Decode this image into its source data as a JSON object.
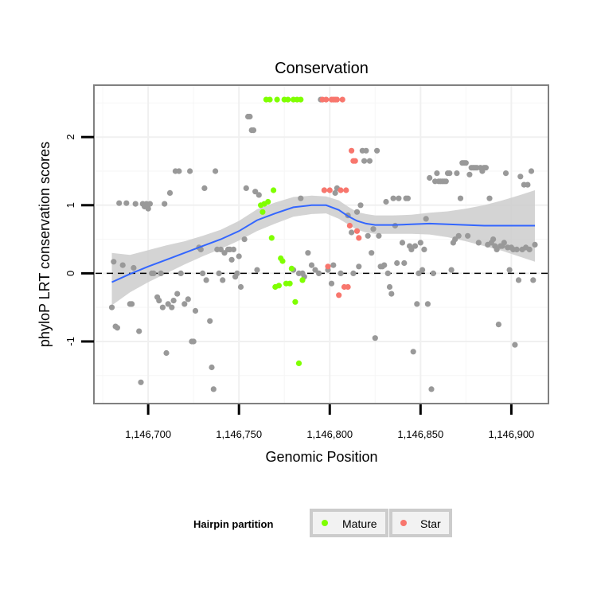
{
  "chart_data": {
    "type": "scatter",
    "title": "Conservation",
    "xlabel": "Genomic Position",
    "ylabel": "phyloP LRT conservation scores",
    "xlim": [
      1146671,
      1146920
    ],
    "ylim": [
      -1.9,
      2.75
    ],
    "x_ticks": [
      1146700,
      1146750,
      1146800,
      1146850,
      1146900
    ],
    "x_tick_labels": [
      "1,146,700",
      "1,146,750",
      "1,146,800",
      "1,146,850",
      "1,146,900"
    ],
    "y_ticks": [
      -1,
      0,
      1,
      2
    ],
    "y_tick_labels": [
      "-1",
      "0",
      "1",
      "2"
    ],
    "reference_line": {
      "y": 0,
      "style": "dashed"
    },
    "grid": true,
    "legend": {
      "title": "Hairpin partition",
      "placement": "bottom",
      "entries": [
        {
          "label": "Mature",
          "color": "#7FFF00"
        },
        {
          "label": "Star",
          "color": "#F8766D"
        }
      ]
    },
    "colors": {
      "other": "#999999",
      "mature": "#7FFF00",
      "star": "#F8766D",
      "smooth": "#3366FF",
      "band": "#cccccc"
    },
    "points": [
      [
        1146680,
        -0.5
      ],
      [
        1146681,
        0.17
      ],
      [
        1146682,
        -0.78
      ],
      [
        1146683,
        -0.8
      ],
      [
        1146684,
        1.03
      ],
      [
        1146686,
        0.12
      ],
      [
        1146688,
        1.03
      ],
      [
        1146690,
        -0.45
      ],
      [
        1146691,
        -0.45
      ],
      [
        1146692,
        0.08
      ],
      [
        1146693,
        1.02
      ],
      [
        1146695,
        -0.85
      ],
      [
        1146696,
        -1.6
      ],
      [
        1146697,
        1.02
      ],
      [
        1146698,
        0.98
      ],
      [
        1146699,
        1.02
      ],
      [
        1146700,
        0.95
      ],
      [
        1146701,
        1.02
      ],
      [
        1146702,
        0.0
      ],
      [
        1146703,
        0.0
      ],
      [
        1146705,
        -0.35
      ],
      [
        1146706,
        -0.4
      ],
      [
        1146707,
        0.0
      ],
      [
        1146708,
        -0.5
      ],
      [
        1146709,
        1.02
      ],
      [
        1146710,
        -1.17
      ],
      [
        1146711,
        -0.45
      ],
      [
        1146712,
        1.18
      ],
      [
        1146713,
        -0.5
      ],
      [
        1146714,
        -0.4
      ],
      [
        1146715,
        1.5
      ],
      [
        1146716,
        -0.3
      ],
      [
        1146717,
        1.5
      ],
      [
        1146718,
        0.0
      ],
      [
        1146720,
        -0.45
      ],
      [
        1146722,
        -0.38
      ],
      [
        1146723,
        1.5
      ],
      [
        1146724,
        -1.0
      ],
      [
        1146725,
        -1.0
      ],
      [
        1146726,
        -0.55
      ],
      [
        1146728,
        0.38
      ],
      [
        1146729,
        0.35
      ],
      [
        1146730,
        0.0
      ],
      [
        1146731,
        1.25
      ],
      [
        1146732,
        -0.1
      ],
      [
        1146734,
        -0.7
      ],
      [
        1146735,
        -1.38
      ],
      [
        1146736,
        -1.7
      ],
      [
        1146737,
        1.5
      ],
      [
        1146738,
        0.35
      ],
      [
        1146739,
        0.0
      ],
      [
        1146740,
        0.35
      ],
      [
        1146741,
        -0.1
      ],
      [
        1146742,
        0.3
      ],
      [
        1146744,
        0.35
      ],
      [
        1146745,
        0.35
      ],
      [
        1146746,
        0.2
      ],
      [
        1146747,
        0.35
      ],
      [
        1146748,
        -0.05
      ],
      [
        1146749,
        0.0
      ],
      [
        1146750,
        0.25
      ],
      [
        1146751,
        -0.2
      ],
      [
        1146753,
        0.5
      ],
      [
        1146754,
        1.25
      ],
      [
        1146755,
        2.3
      ],
      [
        1146756,
        2.3
      ],
      [
        1146757,
        2.1
      ],
      [
        1146758,
        2.1
      ],
      [
        1146759,
        1.2
      ],
      [
        1146760,
        0.05
      ],
      [
        1146761,
        1.15
      ],
      [
        1146780,
        0.05
      ],
      [
        1146783,
        0.0
      ],
      [
        1146784,
        1.1
      ],
      [
        1146785,
        0.0
      ],
      [
        1146786,
        -0.05
      ],
      [
        1146788,
        0.3
      ],
      [
        1146790,
        0.12
      ],
      [
        1146792,
        0.05
      ],
      [
        1146794,
        0.0
      ],
      [
        1146795,
        2.55
      ],
      [
        1146797,
        1.22
      ],
      [
        1146799,
        0.05
      ],
      [
        1146801,
        -0.15
      ],
      [
        1146802,
        0.12
      ],
      [
        1146803,
        1.18
      ],
      [
        1146804,
        1.25
      ],
      [
        1146806,
        0.0
      ],
      [
        1146810,
        0.85
      ],
      [
        1146812,
        0.6
      ],
      [
        1146813,
        0.0
      ],
      [
        1146815,
        0.9
      ],
      [
        1146816,
        0.1
      ],
      [
        1146817,
        1.0
      ],
      [
        1146818,
        1.8
      ],
      [
        1146819,
        1.65
      ],
      [
        1146820,
        1.8
      ],
      [
        1146821,
        0.55
      ],
      [
        1146822,
        1.65
      ],
      [
        1146823,
        0.3
      ],
      [
        1146824,
        0.65
      ],
      [
        1146825,
        -0.95
      ],
      [
        1146826,
        1.8
      ],
      [
        1146827,
        0.55
      ],
      [
        1146828,
        0.1
      ],
      [
        1146829,
        0.1
      ],
      [
        1146830,
        0.12
      ],
      [
        1146831,
        1.05
      ],
      [
        1146832,
        0.0
      ],
      [
        1146833,
        -0.2
      ],
      [
        1146834,
        -0.3
      ],
      [
        1146835,
        1.1
      ],
      [
        1146836,
        0.7
      ],
      [
        1146837,
        0.15
      ],
      [
        1146838,
        1.1
      ],
      [
        1146840,
        0.45
      ],
      [
        1146841,
        0.15
      ],
      [
        1146842,
        1.1
      ],
      [
        1146843,
        1.1
      ],
      [
        1146844,
        0.4
      ],
      [
        1146845,
        0.35
      ],
      [
        1146846,
        -1.15
      ],
      [
        1146847,
        0.4
      ],
      [
        1146848,
        -0.45
      ],
      [
        1146849,
        0.0
      ],
      [
        1146850,
        0.45
      ],
      [
        1146851,
        0.05
      ],
      [
        1146852,
        0.35
      ],
      [
        1146853,
        0.8
      ],
      [
        1146854,
        -0.45
      ],
      [
        1146855,
        1.4
      ],
      [
        1146856,
        -1.7
      ],
      [
        1146857,
        0.0
      ],
      [
        1146858,
        1.35
      ],
      [
        1146859,
        1.47
      ],
      [
        1146860,
        1.35
      ],
      [
        1146861,
        1.35
      ],
      [
        1146862,
        1.35
      ],
      [
        1146863,
        1.35
      ],
      [
        1146864,
        1.35
      ],
      [
        1146865,
        1.47
      ],
      [
        1146866,
        1.47
      ],
      [
        1146867,
        0.05
      ],
      [
        1146868,
        0.45
      ],
      [
        1146869,
        0.5
      ],
      [
        1146870,
        1.47
      ],
      [
        1146871,
        0.55
      ],
      [
        1146872,
        1.1
      ],
      [
        1146873,
        1.62
      ],
      [
        1146874,
        1.62
      ],
      [
        1146875,
        1.62
      ],
      [
        1146876,
        0.55
      ],
      [
        1146877,
        1.45
      ],
      [
        1146878,
        1.55
      ],
      [
        1146879,
        1.55
      ],
      [
        1146880,
        1.55
      ],
      [
        1146881,
        1.55
      ],
      [
        1146882,
        0.45
      ],
      [
        1146883,
        1.55
      ],
      [
        1146884,
        1.5
      ],
      [
        1146885,
        1.55
      ],
      [
        1146886,
        1.55
      ],
      [
        1146887,
        0.42
      ],
      [
        1146888,
        1.1
      ],
      [
        1146889,
        0.45
      ],
      [
        1146890,
        0.5
      ],
      [
        1146891,
        0.4
      ],
      [
        1146892,
        0.35
      ],
      [
        1146893,
        -0.75
      ],
      [
        1146894,
        0.4
      ],
      [
        1146895,
        0.4
      ],
      [
        1146896,
        0.45
      ],
      [
        1146897,
        1.47
      ],
      [
        1146898,
        0.38
      ],
      [
        1146899,
        0.05
      ],
      [
        1146900,
        0.38
      ],
      [
        1146901,
        0.35
      ],
      [
        1146902,
        -1.05
      ],
      [
        1146903,
        0.35
      ],
      [
        1146904,
        -0.1
      ],
      [
        1146905,
        1.42
      ],
      [
        1146906,
        0.35
      ],
      [
        1146907,
        1.3
      ],
      [
        1146908,
        0.38
      ],
      [
        1146909,
        1.3
      ],
      [
        1146910,
        0.35
      ],
      [
        1146911,
        1.5
      ],
      [
        1146912,
        -0.1
      ],
      [
        1146913,
        0.42
      ]
    ],
    "mature_points": [
      [
        1146762,
        1.0
      ],
      [
        1146763,
        0.9
      ],
      [
        1146764,
        1.02
      ],
      [
        1146765,
        2.55
      ],
      [
        1146766,
        1.05
      ],
      [
        1146767,
        2.55
      ],
      [
        1146768,
        0.52
      ],
      [
        1146769,
        1.22
      ],
      [
        1146770,
        -0.2
      ],
      [
        1146771,
        2.55
      ],
      [
        1146772,
        -0.18
      ],
      [
        1146773,
        0.22
      ],
      [
        1146774,
        0.18
      ],
      [
        1146775,
        2.55
      ],
      [
        1146776,
        -0.15
      ],
      [
        1146777,
        2.55
      ],
      [
        1146778,
        -0.15
      ],
      [
        1146779,
        0.07
      ],
      [
        1146780,
        2.55
      ],
      [
        1146781,
        -0.42
      ],
      [
        1146782,
        2.55
      ],
      [
        1146783,
        -1.32
      ],
      [
        1146784,
        2.55
      ],
      [
        1146785,
        -0.1
      ]
    ],
    "star_points": [
      [
        1146796,
        2.55
      ],
      [
        1146797,
        1.22
      ],
      [
        1146798,
        2.55
      ],
      [
        1146799,
        0.1
      ],
      [
        1146800,
        1.22
      ],
      [
        1146801,
        2.55
      ],
      [
        1146802,
        2.55
      ],
      [
        1146803,
        2.55
      ],
      [
        1146804,
        2.55
      ],
      [
        1146805,
        -0.32
      ],
      [
        1146806,
        1.22
      ],
      [
        1146807,
        2.55
      ],
      [
        1146808,
        -0.2
      ],
      [
        1146809,
        1.22
      ],
      [
        1146810,
        -0.2
      ],
      [
        1146811,
        0.7
      ],
      [
        1146812,
        1.8
      ],
      [
        1146813,
        1.65
      ],
      [
        1146814,
        1.65
      ],
      [
        1146815,
        0.62
      ],
      [
        1146816,
        0.52
      ]
    ],
    "smooth_line": [
      [
        1146680,
        -0.13
      ],
      [
        1146690,
        -0.01
      ],
      [
        1146700,
        0.1
      ],
      [
        1146710,
        0.2
      ],
      [
        1146720,
        0.3
      ],
      [
        1146730,
        0.4
      ],
      [
        1146740,
        0.5
      ],
      [
        1146750,
        0.62
      ],
      [
        1146760,
        0.78
      ],
      [
        1146770,
        0.88
      ],
      [
        1146780,
        0.97
      ],
      [
        1146790,
        1.0
      ],
      [
        1146798,
        1.0
      ],
      [
        1146805,
        0.93
      ],
      [
        1146810,
        0.84
      ],
      [
        1146815,
        0.77
      ],
      [
        1146820,
        0.73
      ],
      [
        1146825,
        0.71
      ],
      [
        1146835,
        0.71
      ],
      [
        1146845,
        0.72
      ],
      [
        1146855,
        0.73
      ],
      [
        1146865,
        0.72
      ],
      [
        1146875,
        0.71
      ],
      [
        1146885,
        0.7
      ],
      [
        1146895,
        0.7
      ],
      [
        1146905,
        0.7
      ],
      [
        1146913,
        0.7
      ]
    ],
    "confidence_band": [
      [
        1146680,
        -0.47,
        0.3
      ],
      [
        1146690,
        -0.28,
        0.27
      ],
      [
        1146700,
        -0.13,
        0.34
      ],
      [
        1146710,
        0.0,
        0.41
      ],
      [
        1146720,
        0.13,
        0.47
      ],
      [
        1146730,
        0.25,
        0.55
      ],
      [
        1146740,
        0.36,
        0.64
      ],
      [
        1146750,
        0.48,
        0.77
      ],
      [
        1146760,
        0.62,
        0.94
      ],
      [
        1146770,
        0.73,
        1.04
      ],
      [
        1146780,
        0.83,
        1.12
      ],
      [
        1146790,
        0.87,
        1.14
      ],
      [
        1146798,
        0.88,
        1.13
      ],
      [
        1146805,
        0.8,
        1.07
      ],
      [
        1146810,
        0.72,
        0.98
      ],
      [
        1146815,
        0.64,
        0.9
      ],
      [
        1146820,
        0.6,
        0.87
      ],
      [
        1146825,
        0.58,
        0.85
      ],
      [
        1146835,
        0.58,
        0.85
      ],
      [
        1146845,
        0.58,
        0.86
      ],
      [
        1146855,
        0.57,
        0.89
      ],
      [
        1146865,
        0.53,
        0.91
      ],
      [
        1146875,
        0.47,
        0.95
      ],
      [
        1146885,
        0.4,
        1.0
      ],
      [
        1146895,
        0.33,
        1.07
      ],
      [
        1146905,
        0.24,
        1.15
      ],
      [
        1146913,
        0.17,
        1.22
      ]
    ]
  }
}
